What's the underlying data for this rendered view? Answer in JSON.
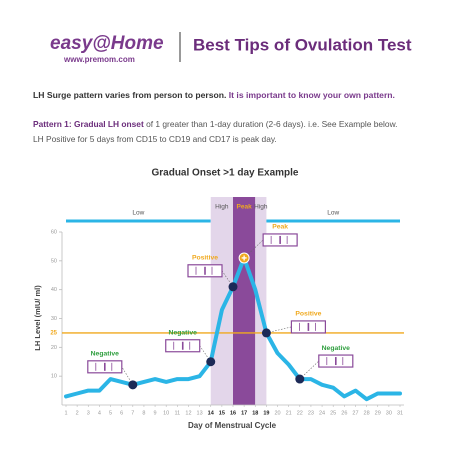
{
  "header": {
    "logo": "easy@Home",
    "website": "www.premom.com",
    "title": "Best Tips of Ovulation Test"
  },
  "intro": {
    "lead": "LH Surge pattern varies from person to person.",
    "emphasis": "It is important to know your own pattern."
  },
  "pattern": {
    "name": "Pattern 1: Gradual LH onset",
    "description": " of 1 greater than 1-day duration (2-6 days). i.e. See Example below.",
    "detail": "LH Positive for 5 days from CD15 to CD19 and CD17 is peak day."
  },
  "chart_data": {
    "type": "line",
    "title": "Gradual Onset >1 day Example",
    "x_label": "Day of Menstrual Cycle",
    "y_label": "LH Level (mIU/ ml)",
    "x": [
      1,
      2,
      3,
      4,
      5,
      6,
      7,
      8,
      9,
      10,
      11,
      12,
      13,
      14,
      15,
      16,
      17,
      18,
      19,
      20,
      21,
      22,
      23,
      24,
      25,
      26,
      27,
      28,
      29,
      30,
      31
    ],
    "series": [
      {
        "name": "LH Level",
        "color": "#2bb5e6",
        "values": [
          3,
          4,
          5,
          5,
          9,
          8,
          7,
          8,
          9,
          8,
          9,
          9,
          10,
          15,
          33,
          41,
          51,
          40,
          25,
          18,
          14,
          9,
          9,
          7,
          6,
          3,
          5,
          2,
          4,
          4,
          4
        ]
      }
    ],
    "xlim": [
      1,
      31
    ],
    "xticks": [
      1,
      2,
      3,
      4,
      5,
      6,
      7,
      8,
      9,
      10,
      11,
      12,
      13,
      14,
      15,
      16,
      17,
      18,
      19,
      20,
      21,
      22,
      23,
      24,
      25,
      26,
      27,
      28,
      29,
      30,
      31
    ],
    "ylim": [
      0,
      60
    ],
    "yticks": [
      10,
      20,
      30,
      40,
      50,
      60
    ],
    "threshold": {
      "value": 25,
      "label": "25",
      "color": "#f0a91e"
    },
    "phases": [
      {
        "label": "Low",
        "x": [
          1,
          14
        ],
        "color": "#2bb5e6"
      },
      {
        "label": "High",
        "x": [
          14,
          16
        ],
        "color": "#e3d6ea"
      },
      {
        "label": "Peak",
        "x": [
          16,
          18
        ],
        "color": "#8a4a9a"
      },
      {
        "label": "High",
        "x": [
          18,
          19
        ],
        "color": "#e3d6ea"
      },
      {
        "label": "Low",
        "x": [
          19,
          31
        ],
        "color": "#2bb5e6"
      }
    ],
    "annotations": [
      {
        "text": "Negative",
        "x": 7,
        "color": "#2e9e3e"
      },
      {
        "text": "Negative",
        "x": 14,
        "color": "#2e9e3e"
      },
      {
        "text": "Positive",
        "x": 16,
        "color": "#f0a91e"
      },
      {
        "text": "Peak",
        "x": 17,
        "color": "#f0a91e"
      },
      {
        "text": "Positive",
        "x": 19,
        "color": "#f0a91e"
      },
      {
        "text": "Negative",
        "x": 22,
        "color": "#2e9e3e"
      }
    ]
  }
}
